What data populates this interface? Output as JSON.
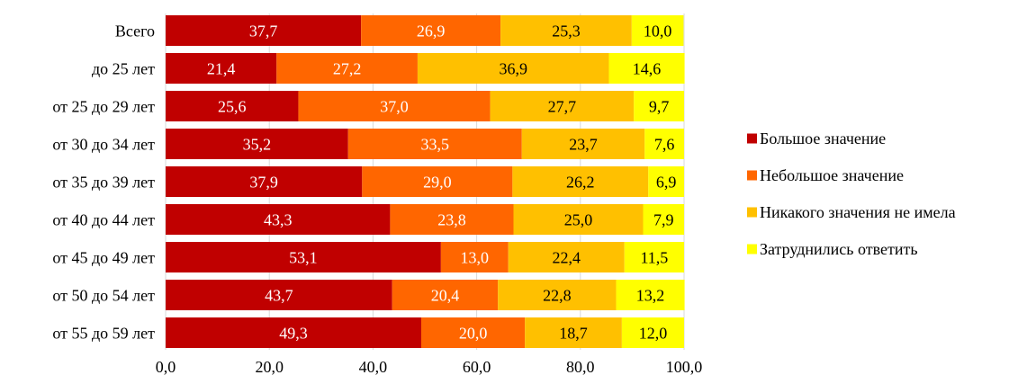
{
  "chart_data": {
    "type": "bar",
    "orientation": "horizontal",
    "stacked": true,
    "categories": [
      "Всего",
      "до 25 лет",
      "от 25 до 29 лет",
      "от 30 до 34 лет",
      "от 35 до 39 лет",
      "от 40 до 44 лет",
      "от 45 до 49 лет",
      "от 50 до 54 лет",
      "от 55 до 59 лет"
    ],
    "series": [
      {
        "name": "Большое значение",
        "color": "#c00000",
        "label_color": "#ffffff",
        "values": [
          37.7,
          21.4,
          25.6,
          35.2,
          37.9,
          43.3,
          53.1,
          43.7,
          49.3
        ]
      },
      {
        "name": "Небольшое значение",
        "color": "#ff6600",
        "label_color": "#ffffff",
        "values": [
          26.9,
          27.2,
          37.0,
          33.5,
          29.0,
          23.8,
          13.0,
          20.4,
          20.0
        ]
      },
      {
        "name": "Никакого значения не имела",
        "color": "#ffc000",
        "label_color": "#000000",
        "values": [
          25.3,
          36.9,
          27.7,
          23.7,
          26.2,
          25.0,
          22.4,
          22.8,
          18.7
        ]
      },
      {
        "name": "Затруднились ответить",
        "color": "#ffff00",
        "label_color": "#000000",
        "values": [
          10.0,
          14.6,
          9.7,
          7.6,
          6.9,
          7.9,
          11.5,
          13.2,
          12.0
        ]
      }
    ],
    "xlim": [
      0,
      100
    ],
    "x_ticks": [
      0,
      20,
      40,
      60,
      80,
      100
    ],
    "x_tick_labels": [
      "0,0",
      "20,0",
      "40,0",
      "60,0",
      "80,0",
      "100,0"
    ],
    "data_label_format": "one-decimal-comma",
    "grid": true,
    "legend_position": "right",
    "title": "",
    "xlabel": "",
    "ylabel": ""
  }
}
